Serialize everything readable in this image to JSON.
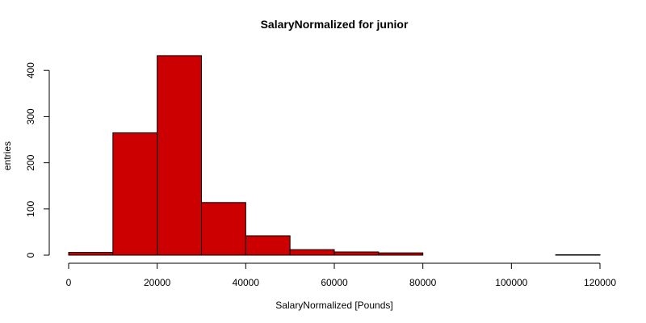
{
  "chart_data": {
    "type": "bar",
    "title": "SalaryNormalized for junior",
    "xlabel": "SalaryNormalized [Pounds]",
    "ylabel": "entries",
    "bins": [
      {
        "from": 0,
        "to": 10000,
        "count": 6
      },
      {
        "from": 10000,
        "to": 20000,
        "count": 265
      },
      {
        "from": 20000,
        "to": 30000,
        "count": 432
      },
      {
        "from": 30000,
        "to": 40000,
        "count": 114
      },
      {
        "from": 40000,
        "to": 50000,
        "count": 42
      },
      {
        "from": 50000,
        "to": 60000,
        "count": 12
      },
      {
        "from": 60000,
        "to": 70000,
        "count": 7
      },
      {
        "from": 70000,
        "to": 80000,
        "count": 5
      },
      {
        "from": 80000,
        "to": 90000,
        "count": 0
      },
      {
        "from": 90000,
        "to": 100000,
        "count": 0
      },
      {
        "from": 100000,
        "to": 110000,
        "count": 0
      },
      {
        "from": 110000,
        "to": 120000,
        "count": 1
      }
    ],
    "xlim": [
      0,
      120000
    ],
    "ylim": [
      0,
      440
    ],
    "xticks": [
      0,
      20000,
      40000,
      60000,
      80000,
      100000,
      120000
    ],
    "yticks": [
      0,
      100,
      200,
      300,
      400
    ],
    "bar_color": "#cc0000",
    "edge_color": "#000000",
    "grid": false
  }
}
